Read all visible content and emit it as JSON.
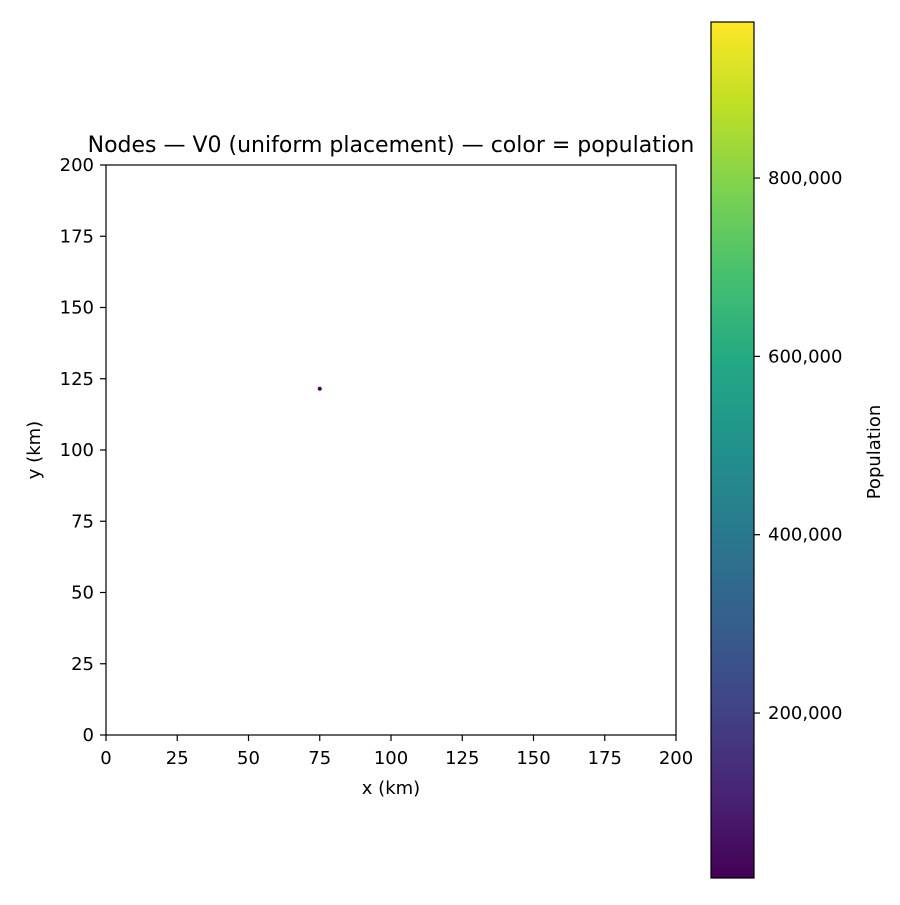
{
  "chart_data": {
    "type": "scatter",
    "title": "Nodes — V0 (uniform placement) — color = population",
    "xlabel": "x (km)",
    "ylabel": "y (km)",
    "xlim": [
      0,
      200
    ],
    "ylim": [
      0,
      200
    ],
    "xticks": [
      "0",
      "25",
      "50",
      "75",
      "100",
      "125",
      "150",
      "175",
      "200"
    ],
    "yticks": [
      "0",
      "25",
      "50",
      "75",
      "100",
      "125",
      "150",
      "175",
      "200"
    ],
    "grid": false,
    "points": [
      {
        "x": 75,
        "y": 121.5,
        "population": 15000
      }
    ],
    "colorbar": {
      "label": "Population",
      "colormap": "viridis",
      "range": [
        15000,
        975000
      ],
      "ticks": [
        "200,000",
        "400,000",
        "600,000",
        "800,000"
      ]
    }
  }
}
